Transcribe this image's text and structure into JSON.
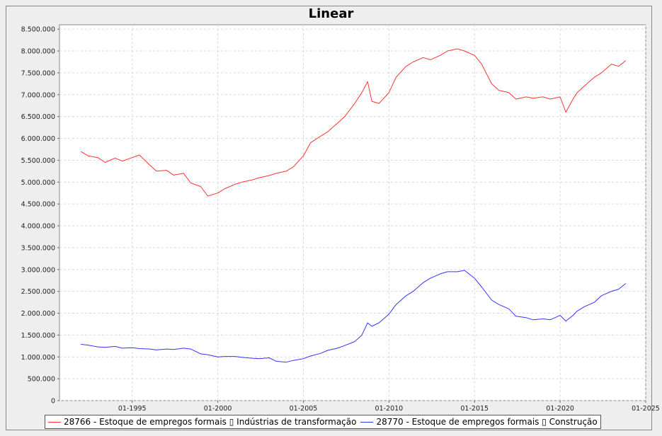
{
  "chart_data": {
    "type": "line",
    "title": "Linear",
    "xlabel": "",
    "ylabel": "",
    "ylim": [
      0,
      8600000
    ],
    "xlim": [
      "1990-10",
      "2025-01"
    ],
    "yticks": [
      0,
      500000,
      1000000,
      1500000,
      2000000,
      2500000,
      3000000,
      3500000,
      4000000,
      4500000,
      5000000,
      5500000,
      6000000,
      6500000,
      7000000,
      7500000,
      8000000,
      8500000
    ],
    "ytick_labels": [
      "0",
      "500.000",
      "1.000.000",
      "1.500.000",
      "2.000.000",
      "2.500.000",
      "3.000.000",
      "3.500.000",
      "4.000.000",
      "4.500.000",
      "5.000.000",
      "5.500.000",
      "6.000.000",
      "6.500.000",
      "7.000.000",
      "7.500.000",
      "8.000.000",
      "8.500.000"
    ],
    "xticks": [
      "1995-01",
      "2000-01",
      "2005-01",
      "2010-01",
      "2015-01",
      "2020-01",
      "2025-01"
    ],
    "xtick_labels": [
      "01-1995",
      "01-2000",
      "01-2005",
      "01-2010",
      "01-2015",
      "01-2020",
      "01-2025"
    ],
    "grid": true,
    "legend_position": "bottom",
    "series": [
      {
        "name": "28766 - Estoque de empregos formais ▯ Indústrias de transformação",
        "color": "#ff3333",
        "x": [
          "1992-01",
          "1992-06",
          "1993-01",
          "1993-06",
          "1994-01",
          "1994-06",
          "1995-01",
          "1995-06",
          "1996-01",
          "1996-06",
          "1997-01",
          "1997-06",
          "1998-01",
          "1998-06",
          "1999-01",
          "1999-06",
          "2000-01",
          "2000-06",
          "2001-01",
          "2001-06",
          "2002-01",
          "2002-06",
          "2003-01",
          "2003-06",
          "2004-01",
          "2004-06",
          "2005-01",
          "2005-06",
          "2006-01",
          "2006-06",
          "2007-01",
          "2007-06",
          "2008-01",
          "2008-06",
          "2008-10",
          "2009-01",
          "2009-06",
          "2010-01",
          "2010-06",
          "2011-01",
          "2011-06",
          "2012-01",
          "2012-06",
          "2013-01",
          "2013-06",
          "2014-01",
          "2014-06",
          "2015-01",
          "2015-06",
          "2016-01",
          "2016-06",
          "2017-01",
          "2017-06",
          "2018-01",
          "2018-06",
          "2019-01",
          "2019-06",
          "2020-01",
          "2020-05",
          "2020-10",
          "2021-01",
          "2021-06",
          "2022-01",
          "2022-06",
          "2023-01",
          "2023-06",
          "2023-11"
        ],
        "values": [
          5700000,
          5600000,
          5560000,
          5450000,
          5550000,
          5480000,
          5560000,
          5620000,
          5400000,
          5250000,
          5270000,
          5160000,
          5200000,
          4980000,
          4900000,
          4680000,
          4750000,
          4850000,
          4950000,
          5000000,
          5050000,
          5100000,
          5150000,
          5200000,
          5250000,
          5350000,
          5600000,
          5900000,
          6050000,
          6150000,
          6350000,
          6500000,
          6800000,
          7050000,
          7300000,
          6850000,
          6800000,
          7050000,
          7400000,
          7650000,
          7750000,
          7850000,
          7800000,
          7900000,
          8000000,
          8050000,
          8000000,
          7900000,
          7700000,
          7250000,
          7100000,
          7050000,
          6900000,
          6950000,
          6920000,
          6950000,
          6900000,
          6950000,
          6600000,
          6900000,
          7050000,
          7200000,
          7400000,
          7500000,
          7700000,
          7650000,
          7780000
        ]
      },
      {
        "name": "28770 - Estoque de empregos formais ▯ Construção",
        "color": "#3333ff",
        "x": [
          "1992-01",
          "1992-06",
          "1993-01",
          "1993-06",
          "1994-01",
          "1994-06",
          "1995-01",
          "1995-06",
          "1996-01",
          "1996-06",
          "1997-01",
          "1997-06",
          "1998-01",
          "1998-06",
          "1999-01",
          "1999-06",
          "2000-01",
          "2000-06",
          "2001-01",
          "2001-06",
          "2002-01",
          "2002-06",
          "2003-01",
          "2003-06",
          "2004-01",
          "2004-06",
          "2005-01",
          "2005-06",
          "2006-01",
          "2006-06",
          "2007-01",
          "2007-06",
          "2008-01",
          "2008-06",
          "2008-10",
          "2009-01",
          "2009-06",
          "2010-01",
          "2010-06",
          "2011-01",
          "2011-06",
          "2012-01",
          "2012-06",
          "2013-01",
          "2013-06",
          "2014-01",
          "2014-06",
          "2015-01",
          "2015-06",
          "2016-01",
          "2016-06",
          "2017-01",
          "2017-06",
          "2018-01",
          "2018-06",
          "2019-01",
          "2019-06",
          "2020-01",
          "2020-05",
          "2020-10",
          "2021-01",
          "2021-06",
          "2022-01",
          "2022-06",
          "2023-01",
          "2023-06",
          "2023-11"
        ],
        "values": [
          1290000,
          1270000,
          1230000,
          1220000,
          1240000,
          1200000,
          1210000,
          1190000,
          1180000,
          1160000,
          1180000,
          1170000,
          1200000,
          1180000,
          1070000,
          1050000,
          1000000,
          1010000,
          1010000,
          990000,
          970000,
          960000,
          980000,
          900000,
          880000,
          920000,
          960000,
          1020000,
          1080000,
          1150000,
          1200000,
          1260000,
          1350000,
          1500000,
          1780000,
          1700000,
          1780000,
          1980000,
          2200000,
          2400000,
          2500000,
          2700000,
          2800000,
          2900000,
          2950000,
          2950000,
          2980000,
          2800000,
          2600000,
          2300000,
          2200000,
          2100000,
          1930000,
          1900000,
          1850000,
          1870000,
          1850000,
          1950000,
          1820000,
          1950000,
          2050000,
          2150000,
          2250000,
          2400000,
          2500000,
          2550000,
          2680000
        ]
      }
    ]
  }
}
